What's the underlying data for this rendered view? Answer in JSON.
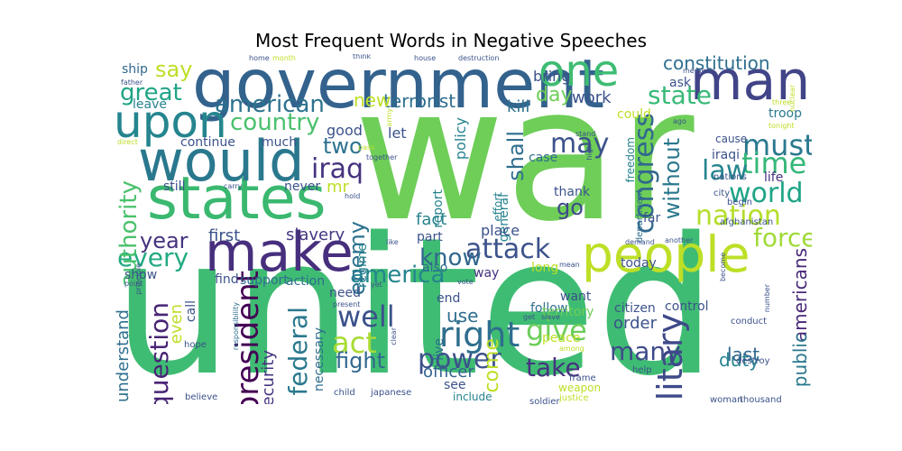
{
  "chart_data": {
    "type": "wordcloud",
    "title": "Most Frequent Words in Negative Speeches",
    "colormap": "viridis",
    "background": "#ffffff",
    "words": [
      {
        "text": "war",
        "color": "#6ece58"
      },
      {
        "text": "united",
        "color": "#3fbc73"
      },
      {
        "text": "government",
        "color": "#33628d"
      },
      {
        "text": "states",
        "color": "#3ab86f"
      },
      {
        "text": "would",
        "color": "#2a788e"
      },
      {
        "text": "make",
        "color": "#472f7d"
      },
      {
        "text": "people",
        "color": "#bddf26"
      },
      {
        "text": "man",
        "color": "#414487"
      },
      {
        "text": "one",
        "color": "#3fbc73"
      },
      {
        "text": "upon",
        "color": "#25858e"
      },
      {
        "text": "american",
        "color": "#2c728e"
      },
      {
        "text": "country",
        "color": "#4ac16d"
      },
      {
        "text": "great",
        "color": "#20a486"
      },
      {
        "text": "say",
        "color": "#bddf26"
      },
      {
        "text": "constitution",
        "color": "#2e6e8e"
      },
      {
        "text": "state",
        "color": "#38b977"
      },
      {
        "text": "terrorist",
        "color": "#2e6e8e"
      },
      {
        "text": "iraq",
        "color": "#46327e"
      },
      {
        "text": "two",
        "color": "#2c728e"
      },
      {
        "text": "congress",
        "color": "#31688e"
      },
      {
        "text": "may",
        "color": "#3b528b"
      },
      {
        "text": "must",
        "color": "#2a788e"
      },
      {
        "text": "time",
        "color": "#35b779"
      },
      {
        "text": "law",
        "color": "#25858e"
      },
      {
        "text": "world",
        "color": "#20a486"
      },
      {
        "text": "nation",
        "color": "#b5de2b"
      },
      {
        "text": "force",
        "color": "#a0da39"
      },
      {
        "text": "attack",
        "color": "#3b528b"
      },
      {
        "text": "know",
        "color": "#31688e"
      },
      {
        "text": "year",
        "color": "#46327e"
      },
      {
        "text": "every",
        "color": "#24aa83"
      },
      {
        "text": "america",
        "color": "#24868e"
      },
      {
        "text": "enemy",
        "color": "#2c728e"
      },
      {
        "text": "president",
        "color": "#440154"
      },
      {
        "text": "federal",
        "color": "#2a788e"
      },
      {
        "text": "well",
        "color": "#3b528b"
      },
      {
        "text": "act",
        "color": "#a8db34"
      },
      {
        "text": "right",
        "color": "#2e6e8e"
      },
      {
        "text": "power",
        "color": "#3b528b"
      },
      {
        "text": "take",
        "color": "#46337f"
      },
      {
        "text": "many",
        "color": "#3e4a89"
      },
      {
        "text": "military",
        "color": "#3e4989"
      },
      {
        "text": "give",
        "color": "#6ccd5a"
      },
      {
        "text": "fight",
        "color": "#31688e"
      },
      {
        "text": "question",
        "color": "#482475"
      },
      {
        "text": "authority",
        "color": "#4ac16d"
      },
      {
        "text": "go",
        "color": "#3e4989"
      },
      {
        "text": "without",
        "color": "#2a788e"
      },
      {
        "text": "work",
        "color": "#3b528b"
      },
      {
        "text": "day",
        "color": "#6ece58"
      },
      {
        "text": "new",
        "color": "#bddf26"
      },
      {
        "text": "shall",
        "color": "#2e6e8e"
      },
      {
        "text": "kill",
        "color": "#2c728e"
      },
      {
        "text": "duty",
        "color": "#26828e"
      },
      {
        "text": "americans",
        "color": "#482878"
      },
      {
        "text": "public",
        "color": "#2a788e"
      },
      {
        "text": "last",
        "color": "#31688e"
      },
      {
        "text": "come",
        "color": "#bddf26"
      },
      {
        "text": "use",
        "color": "#2e6e8e"
      },
      {
        "text": "order",
        "color": "#3b528b"
      },
      {
        "text": "officer",
        "color": "#33638d"
      },
      {
        "text": "security",
        "color": "#46337f"
      },
      {
        "text": "fact",
        "color": "#26828e"
      },
      {
        "text": "slavery",
        "color": "#453781"
      },
      {
        "text": "first",
        "color": "#3b528b"
      },
      {
        "text": "understand",
        "color": "#2e6e8e"
      },
      {
        "text": "even",
        "color": "#bddf26"
      },
      {
        "text": "mr",
        "color": "#bddf26"
      },
      {
        "text": "good",
        "color": "#3b528b"
      },
      {
        "text": "let",
        "color": "#3b528b"
      },
      {
        "text": "policy",
        "color": "#25838e"
      },
      {
        "text": "much",
        "color": "#3b528b"
      },
      {
        "text": "continue",
        "color": "#3b528b"
      },
      {
        "text": "never",
        "color": "#3b528b"
      },
      {
        "text": "still",
        "color": "#3b528b"
      },
      {
        "text": "ship",
        "color": "#31688e"
      },
      {
        "text": "leave",
        "color": "#26828e"
      },
      {
        "text": "could",
        "color": "#bddf26"
      },
      {
        "text": "ask",
        "color": "#3b528b"
      },
      {
        "text": "bring",
        "color": "#3b528b"
      },
      {
        "text": "troop",
        "color": "#2a788e"
      },
      {
        "text": "life",
        "color": "#46337f"
      },
      {
        "text": "iraqi",
        "color": "#3b528b"
      },
      {
        "text": "cause",
        "color": "#3b528b"
      },
      {
        "text": "case",
        "color": "#2e6e8e"
      },
      {
        "text": "thank",
        "color": "#3b528b"
      },
      {
        "text": "general",
        "color": "#25838e"
      },
      {
        "text": "effort",
        "color": "#25838e"
      },
      {
        "text": "report",
        "color": "#25838e"
      },
      {
        "text": "regime",
        "color": "#25838e"
      },
      {
        "text": "place",
        "color": "#3b528b"
      },
      {
        "text": "part",
        "color": "#3b528b"
      },
      {
        "text": "also",
        "color": "#2e6e8e"
      },
      {
        "text": "way",
        "color": "#46337f"
      },
      {
        "text": "long",
        "color": "#bddf26"
      },
      {
        "text": "today",
        "color": "#3b528b"
      },
      {
        "text": "far",
        "color": "#3b528b"
      },
      {
        "text": "control",
        "color": "#3b528b"
      },
      {
        "text": "citizen",
        "color": "#3b528b"
      },
      {
        "text": "follow",
        "color": "#2e6e8e"
      },
      {
        "text": "peace",
        "color": "#bddf26"
      },
      {
        "text": "want",
        "color": "#3b528b"
      },
      {
        "text": "territory",
        "color": "#6ece58"
      },
      {
        "text": "end",
        "color": "#3b528b"
      },
      {
        "text": "live",
        "color": "#2e6e8e"
      },
      {
        "text": "need",
        "color": "#3b528b"
      },
      {
        "text": "action",
        "color": "#2e6e8e"
      },
      {
        "text": "support",
        "color": "#2e6e8e"
      },
      {
        "text": "find",
        "color": "#3b528b"
      },
      {
        "text": "call",
        "color": "#3b528b"
      },
      {
        "text": "show",
        "color": "#3b528b"
      },
      {
        "text": "necessary",
        "color": "#2e6e8e"
      },
      {
        "text": "see",
        "color": "#3b528b"
      },
      {
        "text": "include",
        "color": "#26828e"
      },
      {
        "text": "weapon",
        "color": "#bddf26"
      },
      {
        "text": "freedom",
        "color": "#26828e"
      },
      {
        "text": "department",
        "color": "#2e6e8e"
      },
      {
        "text": "nations",
        "color": "#3b528b"
      },
      {
        "text": "city",
        "color": "#3b528b"
      },
      {
        "text": "begin",
        "color": "#3b528b"
      },
      {
        "text": "afghanistan",
        "color": "#3b528b"
      },
      {
        "text": "conduct",
        "color": "#3b528b"
      },
      {
        "text": "destroy",
        "color": "#3b528b"
      },
      {
        "text": "help",
        "color": "#3b528b"
      },
      {
        "text": "thousand",
        "color": "#3b528b"
      },
      {
        "text": "woman",
        "color": "#3b528b"
      },
      {
        "text": "justice",
        "color": "#bddf26"
      },
      {
        "text": "soldier",
        "color": "#3b528b"
      },
      {
        "text": "frame",
        "color": "#3b528b"
      },
      {
        "text": "japanese",
        "color": "#3b528b"
      },
      {
        "text": "child",
        "color": "#3b528b"
      },
      {
        "text": "believe",
        "color": "#3b528b"
      },
      {
        "text": "hope",
        "color": "#3b528b"
      },
      {
        "text": "responsibility",
        "color": "#2e6e8e"
      },
      {
        "text": "present",
        "color": "#3b528b"
      },
      {
        "text": "vote",
        "color": "#3b528b"
      },
      {
        "text": "get",
        "color": "#3b528b"
      },
      {
        "text": "slave",
        "color": "#3b528b"
      },
      {
        "text": "among",
        "color": "#bddf26"
      },
      {
        "text": "clear",
        "color": "#3b528b"
      },
      {
        "text": "yet",
        "color": "#3b528b"
      },
      {
        "text": "like",
        "color": "#3b528b"
      },
      {
        "text": "hold",
        "color": "#3b528b"
      },
      {
        "text": "carry",
        "color": "#3b528b"
      },
      {
        "text": "principle",
        "color": "#3b528b"
      },
      {
        "text": "point",
        "color": "#3b528b"
      },
      {
        "text": "direct",
        "color": "#bddf26"
      },
      {
        "text": "father",
        "color": "#3b528b"
      },
      {
        "text": "secretary",
        "color": "#bddf26"
      },
      {
        "text": "home",
        "color": "#3b528b"
      },
      {
        "text": "month",
        "color": "#bddf26"
      },
      {
        "text": "think",
        "color": "#3b528b"
      },
      {
        "text": "house",
        "color": "#3b528b"
      },
      {
        "text": "destruction",
        "color": "#3b528b"
      },
      {
        "text": "member",
        "color": "#3b528b"
      },
      {
        "text": "nuclear",
        "color": "#bddf26"
      },
      {
        "text": "three",
        "color": "#bddf26"
      },
      {
        "text": "tonight",
        "color": "#bddf26"
      },
      {
        "text": "ago",
        "color": "#3b528b"
      },
      {
        "text": "high",
        "color": "#3b528b"
      },
      {
        "text": "stand",
        "color": "#3b528b"
      },
      {
        "text": "army",
        "color": "#bddf26"
      },
      {
        "text": "together",
        "color": "#3b528b"
      },
      {
        "text": "pass",
        "color": "#bddf26"
      },
      {
        "text": "another",
        "color": "#3b528b"
      },
      {
        "text": "demand",
        "color": "#3b528b"
      },
      {
        "text": "mean",
        "color": "#3b528b"
      },
      {
        "text": "become",
        "color": "#3b528b"
      },
      {
        "text": "number",
        "color": "#3b528b"
      }
    ]
  }
}
